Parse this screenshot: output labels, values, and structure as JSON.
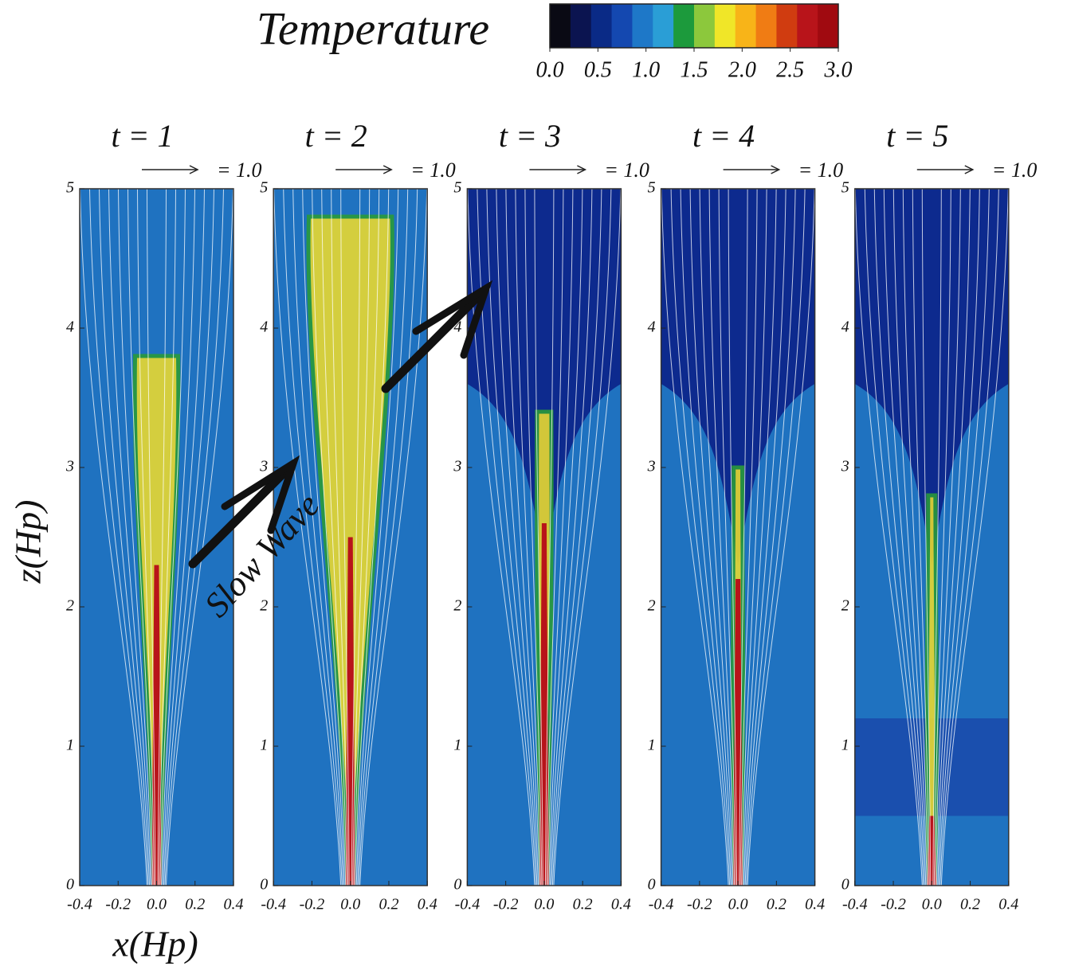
{
  "colorbar": {
    "title": "Temperature",
    "lim": [
      0,
      3
    ],
    "ticks": [
      {
        "value": 0,
        "label": "0.0"
      },
      {
        "value": 0.5,
        "label": "0.5"
      },
      {
        "value": 1,
        "label": "1.0"
      },
      {
        "value": 1.5,
        "label": "1.5"
      },
      {
        "value": 2,
        "label": "2.0"
      },
      2.5,
      {
        "value": 3,
        "label": "3.0"
      }
    ],
    "colors": [
      "#0a0a14",
      "#0b1450",
      "#0a2a86",
      "#1448b0",
      "#1e78c8",
      "#2a9ed6",
      "#1c9a3c",
      "#8cc83c",
      "#f0e628",
      "#f8b418",
      "#f07c14",
      "#d03c10",
      "#b8141a",
      "#a00a10"
    ]
  },
  "xlabel": "x(Hp)",
  "ylabel": "z(Hp)",
  "annotation": "Slow Wave",
  "chart_data": [
    {
      "type": "contour",
      "title": "t = 1",
      "vector_scale": {
        "value": 1.0,
        "label": "= 1.0"
      },
      "xlim": [
        -0.4,
        0.4
      ],
      "xticks": [
        -0.4,
        -0.2,
        {
          "value": 0,
          "label": "0.0"
        },
        0.2,
        0.4
      ],
      "ylim": [
        0,
        5
      ],
      "yticks": [
        0,
        1,
        2,
        3,
        4,
        5
      ]
    },
    {
      "type": "contour",
      "title": "t = 2",
      "vector_scale": {
        "value": 1.0,
        "label": "= 1.0"
      },
      "xlim": [
        -0.4,
        0.4
      ],
      "xticks": [
        -0.4,
        -0.2,
        {
          "value": 0,
          "label": "0.0"
        },
        0.2,
        0.4
      ],
      "ylim": [
        0,
        5
      ],
      "yticks": [
        0,
        1,
        2,
        3,
        4,
        5
      ]
    },
    {
      "type": "contour",
      "title": "t = 3",
      "vector_scale": {
        "value": 1.0,
        "label": "= 1.0"
      },
      "xlim": [
        -0.4,
        0.4
      ],
      "xticks": [
        -0.4,
        -0.2,
        {
          "value": 0,
          "label": "0.0"
        },
        0.2,
        0.4
      ],
      "ylim": [
        0,
        5
      ],
      "yticks": [
        0,
        1,
        2,
        3,
        4,
        5
      ]
    },
    {
      "type": "contour",
      "title": "t = 4",
      "vector_scale": {
        "value": 1.0,
        "label": "= 1.0"
      },
      "xlim": [
        -0.4,
        0.4
      ],
      "xticks": [
        -0.4,
        -0.2,
        {
          "value": 0,
          "label": "0.0"
        },
        0.2,
        0.4
      ],
      "ylim": [
        0,
        5
      ],
      "yticks": [
        0,
        1,
        2,
        3,
        4,
        5
      ]
    },
    {
      "type": "contour",
      "title": "t = 5",
      "vector_scale": {
        "value": 1.0,
        "label": "= 1.0"
      },
      "xlim": [
        -0.4,
        0.4
      ],
      "xticks": [
        -0.4,
        -0.2,
        {
          "value": 0,
          "label": "0.0"
        },
        0.2,
        0.4
      ],
      "ylim": [
        0,
        5
      ],
      "yticks": [
        0,
        1,
        2,
        3,
        4,
        5
      ]
    }
  ]
}
